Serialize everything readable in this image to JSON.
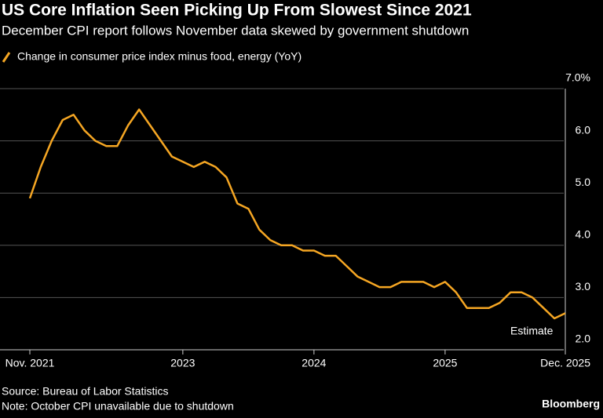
{
  "chart_data": {
    "type": "line",
    "title": "US Core Inflation Seen Picking Up From Slowest Since 2021",
    "subtitle": "December CPI report follows November data skewed by government shutdown",
    "categories": [
      "Nov. 2021",
      null,
      null,
      null,
      null,
      null,
      null,
      null,
      null,
      null,
      null,
      null,
      null,
      null,
      "2023",
      null,
      null,
      null,
      null,
      null,
      null,
      null,
      null,
      null,
      null,
      null,
      "2024",
      null,
      null,
      null,
      null,
      null,
      null,
      null,
      null,
      null,
      null,
      null,
      "2025",
      null,
      null,
      null,
      null,
      null,
      null,
      null,
      null,
      null,
      null,
      "Dec. 2025"
    ],
    "series": [
      {
        "name": "Change in consumer price index minus food, energy (YoY)",
        "color": "#f5a623",
        "values": [
          4.9,
          5.5,
          6.0,
          6.4,
          6.5,
          6.2,
          6.0,
          5.9,
          5.9,
          6.3,
          6.6,
          6.3,
          6.0,
          5.7,
          5.6,
          5.5,
          5.6,
          5.5,
          5.3,
          4.8,
          4.7,
          4.3,
          4.1,
          4.0,
          4.0,
          3.9,
          3.9,
          3.8,
          3.8,
          3.6,
          3.4,
          3.3,
          3.2,
          3.2,
          3.3,
          3.3,
          3.3,
          3.2,
          3.3,
          3.1,
          2.8,
          2.8,
          2.8,
          2.9,
          3.1,
          3.1,
          3.0,
          2.8,
          2.6,
          2.7
        ]
      }
    ],
    "ylim": [
      2,
      7
    ],
    "yticks": [
      {
        "value": 2,
        "label": "2.0"
      },
      {
        "value": 3,
        "label": "3.0"
      },
      {
        "value": 4,
        "label": "4.0"
      },
      {
        "value": 5,
        "label": "5.0"
      },
      {
        "value": 6,
        "label": "6.0"
      },
      {
        "value": 7,
        "label": "7.0%"
      }
    ],
    "grid": true,
    "annotation": "Estimate",
    "source": "Source: Bureau of Labor Statistics",
    "note": "Note: October CPI unavailable due to shutdown",
    "brand": "Bloomberg"
  }
}
